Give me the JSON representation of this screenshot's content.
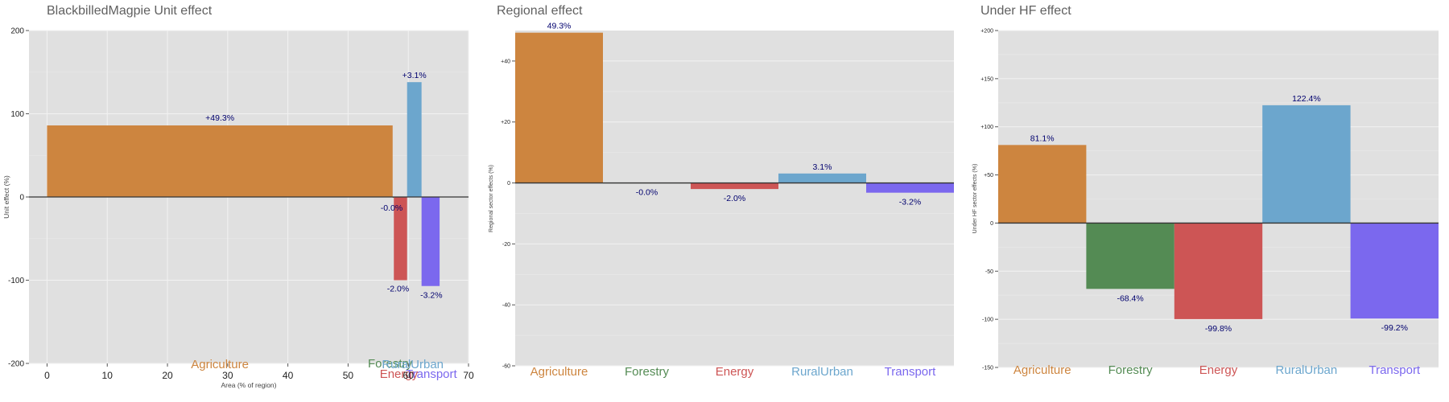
{
  "colors": {
    "Agriculture": "#cd853f",
    "Forestry": "#548b54",
    "Energy": "#cd5555",
    "RuralUrban": "#6ca6cd",
    "Transport": "#7b68ee",
    "panel_bg": "#e0e0e0",
    "label": "#00006e"
  },
  "chart_data": [
    {
      "type": "bar",
      "title": "BlackbilledMagpie Unit effect",
      "xlabel": "Area (% of region)",
      "ylabel": "Unit effect (%)",
      "xlim": [
        -3,
        70
      ],
      "ylim": [
        -200,
        200
      ],
      "xticks": [
        0,
        10,
        20,
        30,
        40,
        50,
        60,
        70
      ],
      "yticks": [
        -200,
        -100,
        0,
        100,
        200
      ],
      "ytick_labels": [
        "-200",
        "-100",
        "0",
        "100",
        "200"
      ],
      "grid": true,
      "bars": [
        {
          "category": "Agriculture",
          "x_start": 0,
          "x_end": 57.4,
          "value": 86,
          "label": "+49.3%"
        },
        {
          "category": "Forestry",
          "x_start": 57.4,
          "x_end": 57.6,
          "value": -1,
          "label": "-0.0%"
        },
        {
          "category": "Energy",
          "x_start": 57.6,
          "x_end": 59.8,
          "value": -100,
          "label": "-2.0%"
        },
        {
          "category": "RuralUrban",
          "x_start": 59.8,
          "x_end": 62.2,
          "value": 138,
          "label": "+3.1%"
        },
        {
          "category": "Transport",
          "x_start": 62.2,
          "x_end": 65.2,
          "value": -107,
          "label": "-3.2%"
        }
      ]
    },
    {
      "type": "bar",
      "title": "Regional effect",
      "ylabel": "Regional sector effects (%)",
      "ylim": [
        -60,
        50
      ],
      "yticks": [
        -60,
        -40,
        -20,
        0,
        20,
        40
      ],
      "ytick_labels": [
        "-60",
        "-40",
        "-20",
        "0",
        "+20",
        "+40"
      ],
      "grid": true,
      "categories": [
        "Agriculture",
        "Forestry",
        "Energy",
        "RuralUrban",
        "Transport"
      ],
      "values": [
        49.3,
        -0.02,
        -2.0,
        3.1,
        -3.2
      ],
      "labels": [
        "49.3%",
        "-0.0%",
        "-2.0%",
        "3.1%",
        "-3.2%"
      ]
    },
    {
      "type": "bar",
      "title": "Under HF effect",
      "ylabel": "Under HF sector effects (%)",
      "ylim": [
        -150,
        200
      ],
      "yticks": [
        -150,
        -100,
        -50,
        0,
        50,
        100,
        150,
        200
      ],
      "ytick_labels": [
        "-150",
        "-100",
        "-50",
        "0",
        "+50",
        "+100",
        "+150",
        "+200"
      ],
      "grid": true,
      "categories": [
        "Agriculture",
        "Forestry",
        "Energy",
        "RuralUrban",
        "Transport"
      ],
      "values": [
        81.1,
        -68.4,
        -99.8,
        122.4,
        -99.2
      ],
      "labels": [
        "81.1%",
        "-68.4%",
        "-99.8%",
        "122.4%",
        "-99.2%"
      ]
    }
  ]
}
